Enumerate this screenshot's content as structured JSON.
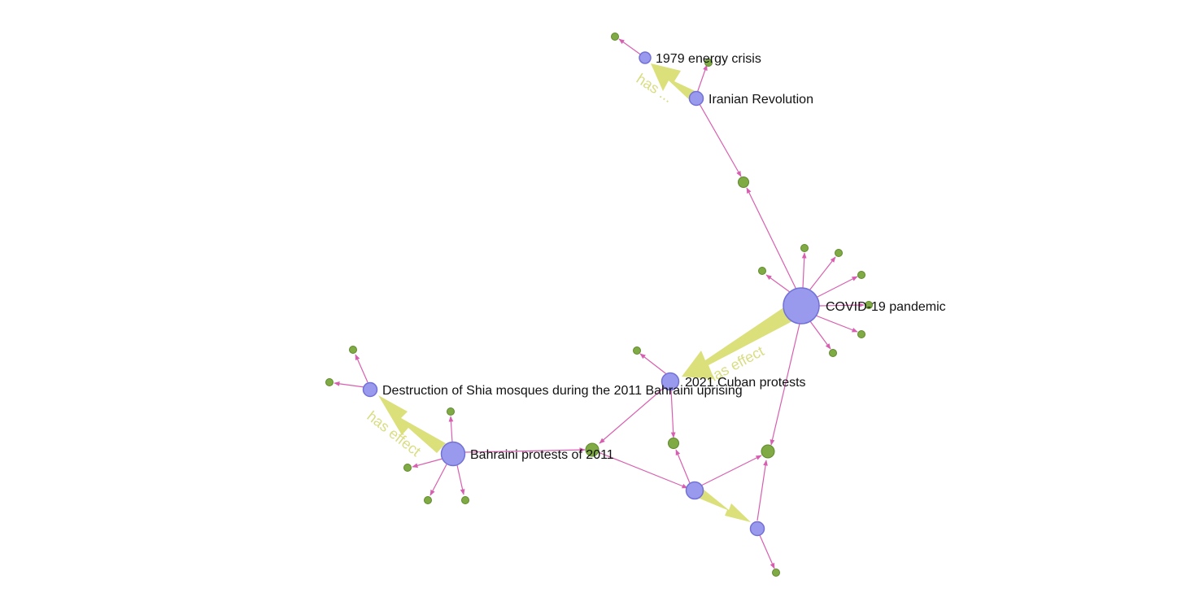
{
  "graph": {
    "colors": {
      "primary_node_fill": "#9999ee",
      "primary_node_stroke": "#7272d6",
      "secondary_node_fill": "#7faa44",
      "secondary_node_stroke": "#5e8a2c",
      "edge": "#d85fb0",
      "strong_edge": "#dbe07a",
      "edge_label": "#d9dd82"
    },
    "labels": {
      "energy": "1979 energy crisis",
      "iran": "Iranian Revolution",
      "covid": "COVID-19 pandemic",
      "cuba": "2021 Cuban protests",
      "mosques": "Destruction of Shia mosques during the 2011 Bahraini uprising",
      "bahrain": "Bahraini protests of 2011",
      "edge_iran_energy": "has ...",
      "edge_covid_cuba": "has effect",
      "edge_bahrain_mosques": "has effect"
    }
  }
}
